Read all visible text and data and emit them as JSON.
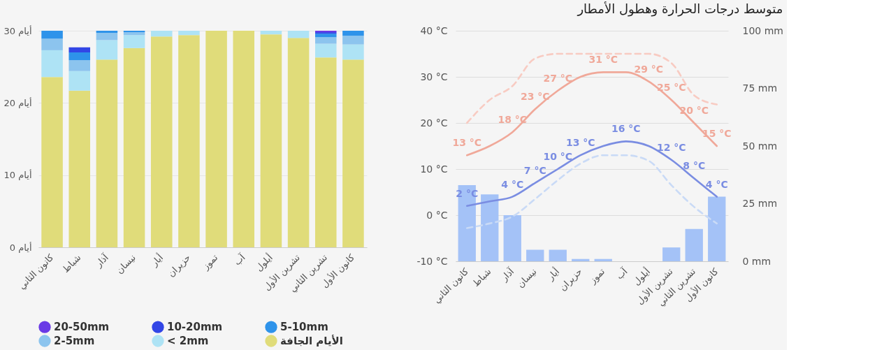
{
  "chart_data": [
    {
      "type": "bar",
      "stacked": true,
      "categories": [
        "كانون الثاني",
        "شباط",
        "آذار",
        "نيسان",
        "أيار",
        "حزيران",
        "تموز",
        "آب",
        "أيلول",
        "تشرين الأول",
        "تشرين الثاني",
        "كانون الأول"
      ],
      "ylim": [
        0,
        30
      ],
      "yticks": [
        {
          "value": 0,
          "label": "0 أيام"
        },
        {
          "value": 10,
          "label": "10 أيام"
        },
        {
          "value": 20,
          "label": "20 أيام"
        },
        {
          "value": 30,
          "label": "30 أيام"
        }
      ],
      "grid": "y",
      "legend": "bottom",
      "series": [
        {
          "name": "الأيام الجافة",
          "color": "#e0dc7a",
          "values": [
            23.6,
            21.7,
            26.0,
            27.6,
            29.2,
            29.4,
            30,
            30,
            29.5,
            29.0,
            26.3,
            26.0
          ]
        },
        {
          "name": "< 2mm",
          "color": "#aee3f5",
          "values": [
            3.7,
            2.7,
            2.7,
            1.8,
            0.8,
            0.6,
            0,
            0,
            0.5,
            1.0,
            1.9,
            2.1
          ]
        },
        {
          "name": "2-5mm",
          "color": "#8cc4ee",
          "values": [
            1.6,
            1.5,
            1.0,
            0.4,
            0,
            0,
            0,
            0,
            0,
            0,
            0.9,
            1.2
          ]
        },
        {
          "name": "5-10mm",
          "color": "#2e93ea",
          "values": [
            1.1,
            1.1,
            0.3,
            0.2,
            0,
            0,
            0,
            0,
            0,
            0,
            0.5,
            0.7
          ]
        },
        {
          "name": "10-20mm",
          "color": "#3246e6",
          "values": [
            0,
            0.7,
            0,
            0,
            0,
            0,
            0,
            0,
            0,
            0,
            0.2,
            0
          ]
        },
        {
          "name": "20-50mm",
          "color": "#6a3ae6",
          "values": [
            0,
            0,
            0,
            0,
            0,
            0,
            0,
            0,
            0,
            0,
            0.2,
            0
          ]
        }
      ]
    },
    {
      "type": "bar",
      "title": "متوسط درجات الحرارة وهطول الأمطار",
      "categories": [
        "كانون الثاني",
        "شباط",
        "آذار",
        "نيسان",
        "أيار",
        "حزيران",
        "تموز",
        "آب",
        "أيلول",
        "تشرين الأول",
        "تشرين الثاني",
        "كانون الأول"
      ],
      "ylim": [
        -10,
        40
      ],
      "yticks": [
        {
          "value": -10,
          "label": "-10 °C"
        },
        {
          "value": 0,
          "label": "0 °C"
        },
        {
          "value": 10,
          "label": "10 °C"
        },
        {
          "value": 20,
          "label": "20 °C"
        },
        {
          "value": 30,
          "label": "30 °C"
        },
        {
          "value": 40,
          "label": "40 °C"
        }
      ],
      "y2lim": [
        0,
        100
      ],
      "y2ticks": [
        {
          "value": 0,
          "label": "0 mm"
        },
        {
          "value": 25,
          "label": "25 mm"
        },
        {
          "value": 50,
          "label": "50 mm"
        },
        {
          "value": 75,
          "label": "75 mm"
        },
        {
          "value": 100,
          "label": "100 mm"
        }
      ],
      "grid": "y",
      "series": [
        {
          "type": "bar",
          "axis": "y2",
          "color": "#a4c2f7",
          "values": [
            33,
            29,
            20,
            5,
            5,
            1,
            1,
            0,
            0,
            6,
            14,
            28
          ]
        },
        {
          "type": "line",
          "line_style": "dashed",
          "color": "#f8cbc2",
          "values": [
            20,
            25,
            28,
            34,
            35,
            35,
            35,
            35,
            35,
            33,
            26,
            24
          ]
        },
        {
          "type": "line",
          "line_style": "dashed",
          "color": "#c9daf6",
          "values": [
            -2.8,
            -1.8,
            -0.3,
            3.5,
            7.6,
            11.2,
            13,
            13,
            11.8,
            6.5,
            1.8,
            -1.8
          ]
        },
        {
          "type": "line",
          "line_style": "solid",
          "color": "#f0a899",
          "values": [
            13,
            15,
            18,
            23,
            27,
            30,
            31,
            31,
            29,
            25,
            20,
            15
          ],
          "value_labels": [
            "13 °C",
            null,
            "18 °C",
            "23 °C",
            "27 °C",
            null,
            "31 °C",
            null,
            "29 °C",
            "25 °C",
            "20 °C",
            "15 °C"
          ]
        },
        {
          "type": "line",
          "line_style": "solid",
          "color": "#7a8de2",
          "values": [
            2,
            3,
            4,
            7,
            10,
            13,
            15,
            16,
            15,
            12,
            8,
            4
          ],
          "value_labels": [
            "2 °C",
            null,
            "4 °C",
            "7 °C",
            "10 °C",
            "13 °C",
            null,
            "16 °C",
            null,
            "12 °C",
            "8 °C",
            "4 °C"
          ]
        }
      ]
    }
  ]
}
